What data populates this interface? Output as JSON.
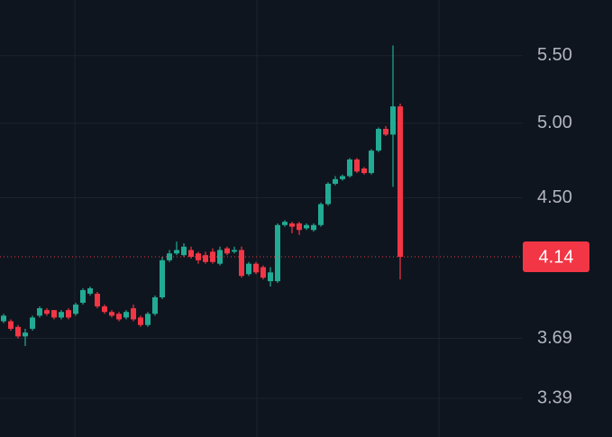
{
  "chart_data": {
    "type": "candlestick",
    "open": [
      3.78,
      3.78,
      3.75,
      3.7,
      3.74,
      3.81,
      3.84,
      3.84,
      3.8,
      3.84,
      3.82,
      3.88,
      3.93,
      3.93,
      3.86,
      3.83,
      3.82,
      3.8,
      3.85,
      3.8,
      3.76,
      3.82,
      3.91,
      4.12,
      4.16,
      4.15,
      4.18,
      4.16,
      4.15,
      4.17,
      4.1,
      4.19,
      4.17,
      4.18,
      4.04,
      4.1,
      4.08,
      4.0,
      4.0,
      4.33,
      4.34,
      4.34,
      4.31,
      4.3,
      4.33,
      4.46,
      4.59,
      4.62,
      4.64,
      4.75,
      4.69,
      4.66,
      4.81,
      4.96,
      4.92,
      5.12
    ],
    "high": [
      3.82,
      3.79,
      3.76,
      3.74,
      3.81,
      3.86,
      3.85,
      3.84,
      3.84,
      3.85,
      3.88,
      3.96,
      3.97,
      3.94,
      3.87,
      3.84,
      3.83,
      3.84,
      3.87,
      3.81,
      3.83,
      3.92,
      4.14,
      4.18,
      4.23,
      4.22,
      4.2,
      4.17,
      4.17,
      4.19,
      4.2,
      4.2,
      4.2,
      4.2,
      4.11,
      4.11,
      4.09,
      4.08,
      4.34,
      4.36,
      4.35,
      4.35,
      4.34,
      4.34,
      4.47,
      4.6,
      4.64,
      4.65,
      4.76,
      4.76,
      4.7,
      4.82,
      4.97,
      4.98,
      5.58,
      5.14
    ],
    "low": [
      3.77,
      3.73,
      3.69,
      3.65,
      3.73,
      3.8,
      3.81,
      3.79,
      3.79,
      3.79,
      3.81,
      3.87,
      3.92,
      3.85,
      3.82,
      3.8,
      3.78,
      3.79,
      3.78,
      3.75,
      3.75,
      3.81,
      3.9,
      4.11,
      4.15,
      4.14,
      4.13,
      4.1,
      4.1,
      4.1,
      4.09,
      4.15,
      4.16,
      4.02,
      4.03,
      4.04,
      4.01,
      3.97,
      3.99,
      4.32,
      4.28,
      4.27,
      4.3,
      4.29,
      4.32,
      4.45,
      4.58,
      4.61,
      4.63,
      4.66,
      4.65,
      4.65,
      4.8,
      4.91,
      4.57,
      4.01
    ],
    "close": [
      3.81,
      3.74,
      3.7,
      3.72,
      3.8,
      3.85,
      3.82,
      3.8,
      3.83,
      3.8,
      3.87,
      3.95,
      3.96,
      3.86,
      3.83,
      3.81,
      3.79,
      3.83,
      3.79,
      3.76,
      3.82,
      3.91,
      4.12,
      4.16,
      4.18,
      4.2,
      4.14,
      4.12,
      4.11,
      4.11,
      4.18,
      4.16,
      4.18,
      4.03,
      4.1,
      4.05,
      4.02,
      4.05,
      4.33,
      4.35,
      4.32,
      4.3,
      4.33,
      4.33,
      4.46,
      4.59,
      4.62,
      4.64,
      4.75,
      4.67,
      4.66,
      4.81,
      4.96,
      4.92,
      5.12,
      4.14
    ],
    "up_color": "#22ab94",
    "down_color": "#f23645",
    "log_scale": true,
    "grid": true,
    "ylim": [
      3.21,
      5.95
    ],
    "yticks": [
      {
        "value": 5.5,
        "label": "5.50"
      },
      {
        "value": 5,
        "label": "5.00"
      },
      {
        "value": 4.5,
        "label": "4.50"
      },
      3.69,
      3.39
    ],
    "last_price": 4.14
  }
}
